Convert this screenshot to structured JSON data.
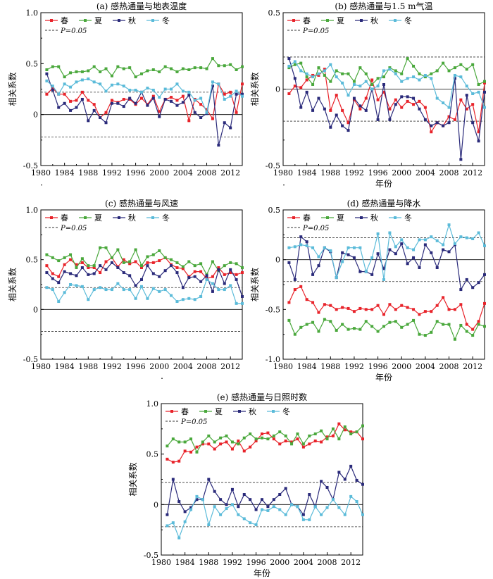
{
  "chart_data": [
    {
      "type": "line",
      "title": "(a) 感热通量与地表温度",
      "ylabel": "相关系数",
      "xlabel": "",
      "xlim": [
        1980,
        2014
      ],
      "ylim": [
        -0.5,
        1.0
      ],
      "yticks": [
        "-0.5",
        "0",
        "0.5",
        "1.0"
      ],
      "xticks": [
        "1980",
        "1984",
        "1988",
        "1992",
        "1996",
        "2000",
        "2004",
        "2008",
        "2012"
      ],
      "x": [
        1981,
        1982,
        1983,
        1984,
        1985,
        1986,
        1987,
        1988,
        1989,
        1990,
        1991,
        1992,
        1993,
        1994,
        1995,
        1996,
        1997,
        1998,
        1999,
        2000,
        2001,
        2002,
        2003,
        2004,
        2005,
        2006,
        2007,
        2008,
        2009,
        2010,
        2011,
        2012,
        2013,
        2014
      ],
      "reference_level": 0.22,
      "reference_label": "P=0.05",
      "series": [
        {
          "name": "春",
          "color": "#e8232a",
          "values": [
            0.2,
            0.26,
            0.2,
            0.2,
            0.13,
            0.14,
            0.22,
            0.14,
            0.1,
            -0.03,
            0.02,
            0.14,
            0.12,
            0.15,
            0.15,
            0.1,
            0.16,
            0.1,
            0.18,
            0.03,
            0.15,
            0.17,
            0.14,
            0.18,
            -0.06,
            0.15,
            0.1,
            0.05,
            -0.04,
            0.3,
            0.2,
            0.22,
            0.02,
            0.3
          ]
        },
        {
          "name": "夏",
          "color": "#4aa83c",
          "values": [
            0.44,
            0.47,
            0.47,
            0.37,
            0.41,
            0.42,
            0.42,
            0.43,
            0.47,
            0.42,
            0.45,
            0.38,
            0.47,
            0.45,
            0.46,
            0.37,
            0.4,
            0.43,
            0.44,
            0.42,
            0.47,
            0.45,
            0.42,
            0.45,
            0.44,
            0.46,
            0.46,
            0.45,
            0.55,
            0.48,
            0.48,
            0.49,
            0.44,
            0.47
          ]
        },
        {
          "name": "秋",
          "color": "#2a2a7a",
          "values": [
            0.4,
            0.24,
            0.07,
            0.11,
            0.04,
            0.07,
            0.15,
            -0.06,
            0.04,
            -0.03,
            -0.08,
            0.11,
            0.11,
            0.08,
            0.16,
            0.11,
            0.22,
            0.09,
            0.16,
            -0.02,
            0.15,
            0.13,
            0.09,
            0.12,
            0.19,
            0.02,
            -0.03,
            0.01,
            0.28,
            -0.3,
            -0.08,
            -0.13,
            0.2,
            0.2
          ]
        },
        {
          "name": "冬",
          "color": "#5bbbd9",
          "values": [
            0.33,
            0.28,
            0.2,
            0.3,
            0.27,
            0.32,
            0.34,
            0.35,
            0.32,
            0.3,
            0.23,
            0.29,
            0.3,
            0.28,
            0.24,
            0.24,
            0.22,
            0.26,
            0.24,
            0.17,
            0.25,
            0.25,
            0.3,
            0.23,
            0.22,
            0.14,
            0.16,
            0.02,
            0.32,
            0.3,
            0.15,
            0.18,
            0.23,
            0.18
          ]
        }
      ]
    },
    {
      "type": "line",
      "title": "(b) 感热通量与1.5 m气温",
      "ylabel": "相关系数",
      "xlabel": "年份",
      "xlim": [
        1980,
        2014
      ],
      "ylim": [
        -0.5,
        0.5
      ],
      "yticks": [
        "-0.5",
        "0",
        "0.5"
      ],
      "xticks": [
        "1980",
        "1984",
        "1988",
        "1992",
        "1996",
        "2000",
        "2004",
        "2008",
        "2012"
      ],
      "x": [
        1981,
        1982,
        1983,
        1984,
        1985,
        1986,
        1987,
        1988,
        1989,
        1990,
        1991,
        1992,
        1993,
        1994,
        1995,
        1996,
        1997,
        1998,
        1999,
        2000,
        2001,
        2002,
        2003,
        2004,
        2005,
        2006,
        2007,
        2008,
        2009,
        2010,
        2011,
        2012,
        2013,
        2014
      ],
      "reference_level": 0.21,
      "reference_label": "P=0.05",
      "series": [
        {
          "name": "春",
          "color": "#e8232a",
          "values": [
            -0.03,
            0.02,
            0.01,
            0.06,
            0.09,
            0.09,
            0.13,
            -0.14,
            -0.04,
            -0.14,
            -0.22,
            -0.07,
            -0.13,
            -0.06,
            0.06,
            -0.07,
            -0.02,
            -0.13,
            -0.07,
            -0.12,
            -0.08,
            -0.1,
            -0.08,
            -0.12,
            -0.28,
            -0.22,
            -0.24,
            -0.18,
            -0.2,
            -0.07,
            -0.13,
            -0.1,
            -0.28,
            0.04
          ]
        },
        {
          "name": "夏",
          "color": "#4aa83c",
          "values": [
            0.14,
            0.16,
            0.17,
            0.08,
            0.03,
            0.14,
            0.09,
            0.05,
            0.12,
            0.1,
            0.1,
            0.05,
            0.14,
            0.1,
            0.03,
            0.07,
            0.08,
            0.14,
            0.12,
            0.1,
            0.2,
            0.15,
            0.1,
            0.08,
            0.1,
            0.12,
            0.17,
            0.12,
            0.14,
            0.16,
            0.13,
            0.16,
            0.03,
            0.05
          ]
        },
        {
          "name": "秋",
          "color": "#2a2a7a",
          "values": [
            0.2,
            0.07,
            -0.12,
            -0.02,
            -0.14,
            -0.06,
            -0.13,
            -0.25,
            -0.17,
            -0.24,
            -0.27,
            -0.06,
            -0.11,
            -0.14,
            0.0,
            -0.2,
            0.03,
            -0.2,
            -0.1,
            -0.05,
            -0.05,
            -0.06,
            -0.13,
            -0.2,
            -0.24,
            -0.22,
            -0.24,
            -0.22,
            0.07,
            -0.46,
            -0.04,
            -0.22,
            -0.34,
            -0.02
          ]
        },
        {
          "name": "冬",
          "color": "#5bbbd9",
          "values": [
            0.15,
            0.18,
            0.12,
            0.1,
            0.08,
            0.1,
            0.12,
            0.16,
            0.08,
            0.04,
            -0.04,
            0.03,
            0.02,
            0.05,
            0.0,
            0.02,
            0.12,
            0.13,
            0.1,
            0.05,
            0.07,
            0.08,
            0.06,
            0.09,
            0.07,
            -0.06,
            -0.09,
            -0.12,
            0.09,
            0.08,
            0.02,
            -0.03,
            -0.02,
            -0.12
          ]
        }
      ]
    },
    {
      "type": "line",
      "title": "(c) 感热通量与风速",
      "ylabel": "相关系数",
      "xlabel": "",
      "xlim": [
        1980,
        2014
      ],
      "ylim": [
        -0.5,
        1.0
      ],
      "yticks": [
        "-0.5",
        "0",
        "0.5",
        "1.0"
      ],
      "xticks": [
        "1980",
        "1984",
        "1988",
        "1992",
        "1996",
        "2000",
        "2004",
        "2008",
        "2012"
      ],
      "x": [
        1981,
        1982,
        1983,
        1984,
        1985,
        1986,
        1987,
        1988,
        1989,
        1990,
        1991,
        1992,
        1993,
        1994,
        1995,
        1996,
        1997,
        1998,
        1999,
        2000,
        2001,
        2002,
        2003,
        2004,
        2005,
        2006,
        2007,
        2008,
        2009,
        2010,
        2011,
        2012,
        2013,
        2014
      ],
      "reference_level": 0.22,
      "reference_label": "P=0.05",
      "series": [
        {
          "name": "春",
          "color": "#e8232a",
          "values": [
            0.44,
            0.36,
            0.33,
            0.45,
            0.5,
            0.45,
            0.47,
            0.42,
            0.42,
            0.37,
            0.48,
            0.52,
            0.43,
            0.5,
            0.46,
            0.48,
            0.42,
            0.47,
            0.47,
            0.49,
            0.52,
            0.45,
            0.42,
            0.41,
            0.33,
            0.38,
            0.38,
            0.31,
            0.33,
            0.42,
            0.35,
            0.37,
            0.35,
            0.37
          ]
        },
        {
          "name": "夏",
          "color": "#4aa83c",
          "values": [
            0.55,
            0.52,
            0.49,
            0.52,
            0.55,
            0.42,
            0.51,
            0.44,
            0.44,
            0.62,
            0.62,
            0.52,
            0.6,
            0.47,
            0.48,
            0.6,
            0.44,
            0.53,
            0.55,
            0.59,
            0.52,
            0.5,
            0.47,
            0.43,
            0.48,
            0.44,
            0.46,
            0.35,
            0.48,
            0.39,
            0.44,
            0.47,
            0.46,
            0.42
          ]
        },
        {
          "name": "秋",
          "color": "#2a2a7a",
          "values": [
            0.37,
            0.31,
            0.27,
            0.38,
            0.36,
            0.34,
            0.42,
            0.35,
            0.36,
            0.44,
            0.4,
            0.47,
            0.42,
            0.37,
            0.34,
            0.24,
            0.3,
            0.44,
            0.36,
            0.33,
            0.39,
            0.44,
            0.37,
            0.22,
            0.32,
            0.33,
            0.28,
            0.34,
            0.18,
            0.4,
            0.26,
            0.4,
            0.3,
            0.13
          ]
        },
        {
          "name": "冬",
          "color": "#5bbbd9",
          "values": [
            0.22,
            0.2,
            0.08,
            0.17,
            0.25,
            0.24,
            0.23,
            0.1,
            0.2,
            0.22,
            0.2,
            0.2,
            0.26,
            0.2,
            0.2,
            0.11,
            0.23,
            0.11,
            0.21,
            0.18,
            0.2,
            0.14,
            0.08,
            0.1,
            0.11,
            0.1,
            0.13,
            0.3,
            0.26,
            0.2,
            0.2,
            0.24,
            0.06,
            0.06
          ]
        }
      ]
    },
    {
      "type": "line",
      "title": "(d) 感热通量与降水",
      "ylabel": "相关系数",
      "xlabel": "年份",
      "xlim": [
        1980,
        2014
      ],
      "ylim": [
        -1.0,
        0.5
      ],
      "yticks": [
        "-1.0",
        "-0.5",
        "0",
        "0.5"
      ],
      "xticks": [
        "1980",
        "1984",
        "1988",
        "1992",
        "1996",
        "2000",
        "2004",
        "2008",
        "2012"
      ],
      "x": [
        1981,
        1982,
        1983,
        1984,
        1985,
        1986,
        1987,
        1988,
        1989,
        1990,
        1991,
        1992,
        1993,
        1994,
        1995,
        1996,
        1997,
        1998,
        1999,
        2000,
        2001,
        2002,
        2003,
        2004,
        2005,
        2006,
        2007,
        2008,
        2009,
        2010,
        2011,
        2012,
        2013,
        2014
      ],
      "reference_level": 0.22,
      "reference_label": "P=0.05",
      "series": [
        {
          "name": "春",
          "color": "#e8232a",
          "values": [
            -0.43,
            -0.3,
            -0.27,
            -0.4,
            -0.43,
            -0.53,
            -0.45,
            -0.46,
            -0.5,
            -0.48,
            -0.49,
            -0.52,
            -0.49,
            -0.5,
            -0.5,
            -0.46,
            -0.55,
            -0.45,
            -0.5,
            -0.46,
            -0.48,
            -0.5,
            -0.55,
            -0.52,
            -0.52,
            -0.46,
            -0.38,
            -0.5,
            -0.5,
            -0.45,
            -0.65,
            -0.7,
            -0.62,
            -0.44
          ]
        },
        {
          "name": "夏",
          "color": "#4aa83c",
          "values": [
            -0.61,
            -0.75,
            -0.68,
            -0.65,
            -0.63,
            -0.72,
            -0.6,
            -0.62,
            -0.71,
            -0.65,
            -0.7,
            -0.69,
            -0.7,
            -0.62,
            -0.67,
            -0.72,
            -0.67,
            -0.63,
            -0.62,
            -0.68,
            -0.65,
            -0.61,
            -0.75,
            -0.76,
            -0.73,
            -0.62,
            -0.65,
            -0.65,
            -0.8,
            -0.66,
            -0.72,
            -0.76,
            -0.65,
            -0.67
          ]
        },
        {
          "name": "秋",
          "color": "#2a2a7a",
          "values": [
            -0.03,
            -0.2,
            0.23,
            0.18,
            -0.15,
            -0.06,
            0.12,
            0.08,
            -0.18,
            0.07,
            0.05,
            0.02,
            -0.12,
            -0.12,
            -0.15,
            0.06,
            -0.09,
            0.1,
            0.06,
            0.16,
            -0.04,
            0.02,
            -0.08,
            0.15,
            0.07,
            -0.08,
            0.1,
            0.08,
            0.15,
            -0.3,
            -0.2,
            -0.28,
            -0.23,
            -0.15
          ]
        },
        {
          "name": "冬",
          "color": "#5bbbd9",
          "values": [
            0.12,
            0.13,
            0.15,
            0.14,
            0.12,
            0.03,
            0.12,
            0.09,
            -0.18,
            -0.02,
            0.12,
            0.12,
            0.12,
            -0.12,
            0.02,
            0.26,
            -0.2,
            0.27,
            0.13,
            0.2,
            0.12,
            0.1,
            0.2,
            0.2,
            0.23,
            0.19,
            0.15,
            0.35,
            0.16,
            0.23,
            0.22,
            0.21,
            0.27,
            0.14
          ]
        }
      ]
    },
    {
      "type": "line",
      "title": "(e) 感热通量与日照时数",
      "ylabel": "相关系数",
      "xlabel": "年份",
      "xlim": [
        1980,
        2014
      ],
      "ylim": [
        -0.5,
        1.0
      ],
      "yticks": [
        "-0.5",
        "0",
        "0.5",
        "1.0"
      ],
      "xticks": [
        "1980",
        "1984",
        "1988",
        "1992",
        "1996",
        "2000",
        "2004",
        "2008",
        "2012"
      ],
      "x": [
        1981,
        1982,
        1983,
        1984,
        1985,
        1986,
        1987,
        1988,
        1989,
        1990,
        1991,
        1992,
        1993,
        1994,
        1995,
        1996,
        1997,
        1998,
        1999,
        2000,
        2001,
        2002,
        2003,
        2004,
        2005,
        2006,
        2007,
        2008,
        2009,
        2010,
        2011,
        2012,
        2013,
        2014
      ],
      "reference_level": 0.22,
      "reference_label": "P=0.05",
      "series": [
        {
          "name": "春",
          "color": "#e8232a",
          "values": [
            0.45,
            0.42,
            0.43,
            0.53,
            0.52,
            0.57,
            0.6,
            0.6,
            0.55,
            0.6,
            0.62,
            0.55,
            0.63,
            0.53,
            0.57,
            0.63,
            0.7,
            0.71,
            0.65,
            0.6,
            0.63,
            0.62,
            0.65,
            0.57,
            0.6,
            0.63,
            0.62,
            0.67,
            0.68,
            0.8,
            0.74,
            0.72,
            0.72,
            0.65
          ]
        },
        {
          "name": "夏",
          "color": "#4aa83c",
          "values": [
            0.58,
            0.65,
            0.62,
            0.62,
            0.65,
            0.52,
            0.62,
            0.68,
            0.62,
            0.66,
            0.68,
            0.62,
            0.6,
            0.66,
            0.7,
            0.65,
            0.66,
            0.65,
            0.68,
            0.72,
            0.68,
            0.6,
            0.7,
            0.6,
            0.68,
            0.7,
            0.73,
            0.65,
            0.75,
            0.65,
            0.77,
            0.7,
            0.72,
            0.78
          ]
        },
        {
          "name": "秋",
          "color": "#2a2a7a",
          "values": [
            -0.1,
            0.25,
            0.03,
            -0.07,
            -0.03,
            0.05,
            0.05,
            0.25,
            0.13,
            0.05,
            0.0,
            0.15,
            -0.02,
            0.1,
            0.05,
            -0.05,
            0.05,
            -0.02,
            0.05,
            0.1,
            0.16,
            0.0,
            -0.02,
            -0.1,
            0.1,
            -0.02,
            0.23,
            0.17,
            0.05,
            0.32,
            0.25,
            0.38,
            0.24,
            0.2
          ]
        },
        {
          "name": "冬",
          "color": "#5bbbd9",
          "values": [
            -0.21,
            -0.18,
            -0.33,
            -0.17,
            -0.05,
            0.08,
            0.05,
            -0.2,
            -0.02,
            -0.1,
            -0.04,
            0.0,
            -0.1,
            -0.14,
            -0.18,
            -0.2,
            -0.05,
            -0.06,
            -0.02,
            -0.05,
            -0.1,
            0.0,
            -0.02,
            -0.15,
            -0.15,
            -0.02,
            -0.1,
            -0.03,
            0.05,
            -0.03,
            -0.1,
            0.08,
            0.03,
            -0.1
          ]
        }
      ]
    }
  ]
}
